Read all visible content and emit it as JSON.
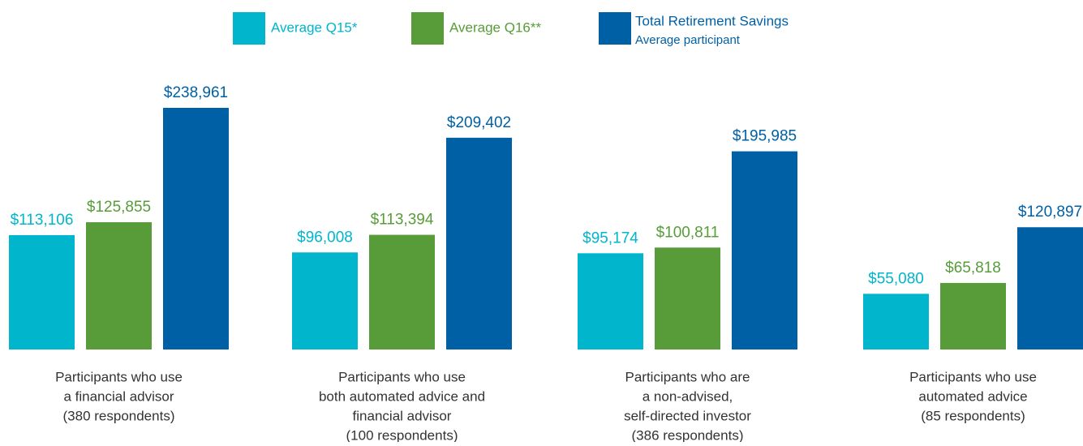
{
  "chart_data": {
    "type": "bar",
    "categories": [
      [
        "Participants who use",
        "a financial advisor",
        "(380 respondents)"
      ],
      [
        "Participants who use",
        "both automated advice and",
        "financial advisor",
        "(100 respondents)"
      ],
      [
        "Participants who are",
        "a non-advised,",
        "self-directed investor",
        "(386 respondents)"
      ],
      [
        "Participants who use",
        "automated advice",
        "(85 respondents)"
      ]
    ],
    "series": [
      {
        "name": "Average Q15*",
        "color": "#00b5cc",
        "values": [
          113106,
          96008,
          95174,
          55080
        ],
        "value_labels": [
          "$113,106",
          "$96,008",
          "$95,174",
          "$55,080"
        ]
      },
      {
        "name": "Average Q16**",
        "color": "#589c3a",
        "values": [
          125855,
          113394,
          100811,
          65818
        ],
        "value_labels": [
          "$125,855",
          "$113,394",
          "$100,811",
          "$65,818"
        ]
      },
      {
        "name": "Total Retirement Savings",
        "subtitle": "Average participant",
        "color": "#0060a5",
        "values": [
          238961,
          209402,
          195985,
          120897
        ],
        "value_labels": [
          "$238,961",
          "$209,402",
          "$195,985",
          "$120,897"
        ]
      }
    ]
  }
}
